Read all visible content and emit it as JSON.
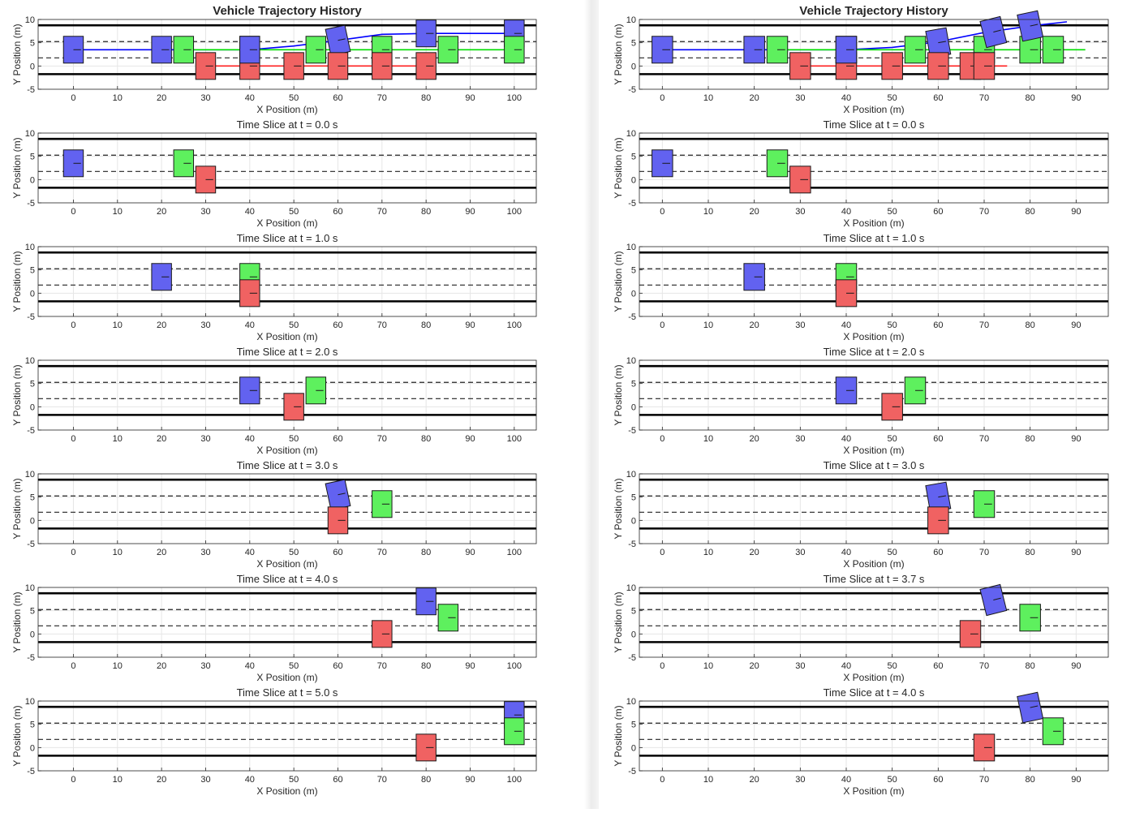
{
  "figures": [
    {
      "name": "left-figure",
      "panels": [
        {
          "title": "Vehicle Trajectory History",
          "main": true,
          "xlabel": "X Position (m)",
          "ylabel": "Y Position (m)"
        },
        {
          "title": "Time Slice at t = 0.0 s",
          "xlabel": "X Position (m)",
          "ylabel": "Y Position (m)"
        },
        {
          "title": "Time Slice at t = 1.0 s",
          "xlabel": "X Position (m)",
          "ylabel": "Y Position (m)"
        },
        {
          "title": "Time Slice at t = 2.0 s",
          "xlabel": "X Position (m)",
          "ylabel": "Y Position (m)"
        },
        {
          "title": "Time Slice at t = 3.0 s",
          "xlabel": "X Position (m)",
          "ylabel": "Y Position (m)"
        },
        {
          "title": "Time Slice at t = 4.0 s",
          "xlabel": "X Position (m)",
          "ylabel": "Y Position (m)"
        },
        {
          "title": "Time Slice at t = 5.0 s",
          "xlabel": "X Position (m)",
          "ylabel": "Y Position (m)"
        }
      ]
    },
    {
      "name": "right-figure",
      "panels": [
        {
          "title": "Vehicle Trajectory History",
          "main": true,
          "xlabel": "X Position (m)",
          "ylabel": "Y Position (m)"
        },
        {
          "title": "Time Slice at t = 0.0 s",
          "xlabel": "X Position (m)",
          "ylabel": "Y Position (m)"
        },
        {
          "title": "Time Slice at t = 1.0 s",
          "xlabel": "X Position (m)",
          "ylabel": "Y Position (m)"
        },
        {
          "title": "Time Slice at t = 2.0 s",
          "xlabel": "X Position (m)",
          "ylabel": "Y Position (m)"
        },
        {
          "title": "Time Slice at t = 3.0 s",
          "xlabel": "X Position (m)",
          "ylabel": "Y Position (m)"
        },
        {
          "title": "Time Slice at t = 3.7 s",
          "xlabel": "X Position (m)",
          "ylabel": "Y Position (m)"
        },
        {
          "title": "Time Slice at t = 4.0 s",
          "xlabel": "X Position (m)",
          "ylabel": "Y Position (m)"
        }
      ]
    }
  ],
  "chart_data": [
    {
      "figure": "left",
      "type": "scatter",
      "xlim": [
        -8,
        105
      ],
      "ylim": [
        -5,
        10
      ],
      "xticks": [
        0,
        10,
        20,
        30,
        40,
        50,
        60,
        70,
        80,
        90,
        100
      ],
      "yticks": [
        -5,
        0,
        5,
        10
      ],
      "grid": true,
      "lane_boundaries_solid": [
        -1.75,
        8.75
      ],
      "lane_markings_dashed": [
        1.75,
        5.25
      ],
      "colors": {
        "blue": "#6262f0",
        "green": "#5ef05e",
        "red": "#f06262",
        "blue_line": "#0000ff",
        "green_line": "#00dd00",
        "red_line": "#ff2020",
        "overlap": "#3b70c0"
      },
      "trajectories": [
        {
          "vehicle": "blue",
          "points": [
            [
              0,
              3.5
            ],
            [
              30,
              3.5
            ],
            [
              40,
              3.5
            ],
            [
              50,
              4.3
            ],
            [
              60,
              5.5
            ],
            [
              70,
              6.8
            ],
            [
              80,
              7.0
            ],
            [
              100,
              7.0
            ]
          ]
        },
        {
          "vehicle": "green",
          "points": [
            [
              25,
              3.5
            ],
            [
              100,
              3.5
            ]
          ]
        },
        {
          "vehicle": "red",
          "points": [
            [
              30,
              0
            ],
            [
              80,
              0
            ]
          ]
        }
      ],
      "time_slices": [
        {
          "t": "0.0 s",
          "vehicles": [
            {
              "vehicle": "blue",
              "x": 0,
              "y": 3.5,
              "heading": 0
            },
            {
              "vehicle": "green",
              "x": 25,
              "y": 3.5,
              "heading": 0
            },
            {
              "vehicle": "red",
              "x": 30,
              "y": 0,
              "heading": 0
            }
          ]
        },
        {
          "t": "1.0 s",
          "vehicles": [
            {
              "vehicle": "blue",
              "x": 20,
              "y": 3.5,
              "heading": 0
            },
            {
              "vehicle": "green",
              "x": 40,
              "y": 3.5,
              "heading": 0
            },
            {
              "vehicle": "red",
              "x": 40,
              "y": 0,
              "heading": 0
            }
          ]
        },
        {
          "t": "2.0 s",
          "vehicles": [
            {
              "vehicle": "blue",
              "x": 40,
              "y": 3.5,
              "heading": 0
            },
            {
              "vehicle": "green",
              "x": 55,
              "y": 3.5,
              "heading": 0
            },
            {
              "vehicle": "red",
              "x": 50,
              "y": 0,
              "heading": 0
            }
          ]
        },
        {
          "t": "3.0 s",
          "vehicles": [
            {
              "vehicle": "blue",
              "x": 60,
              "y": 5.5,
              "heading": 12
            },
            {
              "vehicle": "green",
              "x": 70,
              "y": 3.5,
              "heading": 0
            },
            {
              "vehicle": "red",
              "x": 60,
              "y": 0,
              "heading": 0
            }
          ]
        },
        {
          "t": "4.0 s",
          "vehicles": [
            {
              "vehicle": "blue",
              "x": 80,
              "y": 7.0,
              "heading": 0
            },
            {
              "vehicle": "green",
              "x": 85,
              "y": 3.5,
              "heading": 0
            },
            {
              "vehicle": "red",
              "x": 70,
              "y": 0,
              "heading": 0
            }
          ]
        },
        {
          "t": "5.0 s",
          "vehicles": [
            {
              "vehicle": "blue",
              "x": 100,
              "y": 7.0,
              "heading": 0
            },
            {
              "vehicle": "green",
              "x": 100,
              "y": 3.5,
              "heading": 0
            },
            {
              "vehicle": "red",
              "x": 80,
              "y": 0,
              "heading": 0
            }
          ]
        }
      ]
    },
    {
      "figure": "right",
      "type": "scatter",
      "xlim": [
        -5,
        97
      ],
      "ylim": [
        -5,
        10
      ],
      "xticks": [
        0,
        10,
        20,
        30,
        40,
        50,
        60,
        70,
        80,
        90
      ],
      "yticks": [
        -5,
        0,
        5,
        10
      ],
      "grid": true,
      "lane_boundaries_solid": [
        -1.75,
        8.75
      ],
      "lane_markings_dashed": [
        1.75,
        5.25
      ],
      "colors": {
        "blue": "#6262f0",
        "green": "#5ef05e",
        "red": "#f06262",
        "blue_line": "#0000ff",
        "green_line": "#00dd00",
        "red_line": "#ff2020",
        "overlap": "#3b70c0"
      },
      "trajectories": [
        {
          "vehicle": "blue",
          "points": [
            [
              0,
              3.5
            ],
            [
              30,
              3.5
            ],
            [
              40,
              3.5
            ],
            [
              50,
              4.0
            ],
            [
              60,
              5.2
            ],
            [
              70,
              7.2
            ],
            [
              80,
              8.6
            ],
            [
              88,
              9.5
            ]
          ]
        },
        {
          "vehicle": "green",
          "points": [
            [
              25,
              3.5
            ],
            [
              92,
              3.5
            ]
          ]
        },
        {
          "vehicle": "red",
          "points": [
            [
              30,
              0
            ],
            [
              75,
              0
            ]
          ]
        }
      ],
      "time_slices": [
        {
          "t": "0.0 s",
          "vehicles": [
            {
              "vehicle": "blue",
              "x": 0,
              "y": 3.5,
              "heading": 0
            },
            {
              "vehicle": "green",
              "x": 25,
              "y": 3.5,
              "heading": 0
            },
            {
              "vehicle": "red",
              "x": 30,
              "y": 0,
              "heading": 0
            }
          ]
        },
        {
          "t": "1.0 s",
          "vehicles": [
            {
              "vehicle": "blue",
              "x": 20,
              "y": 3.5,
              "heading": 0
            },
            {
              "vehicle": "green",
              "x": 40,
              "y": 3.5,
              "heading": 0
            },
            {
              "vehicle": "red",
              "x": 40,
              "y": 0,
              "heading": 0
            }
          ]
        },
        {
          "t": "2.0 s",
          "vehicles": [
            {
              "vehicle": "blue",
              "x": 40,
              "y": 3.5,
              "heading": 0
            },
            {
              "vehicle": "green",
              "x": 55,
              "y": 3.5,
              "heading": 0
            },
            {
              "vehicle": "red",
              "x": 50,
              "y": 0,
              "heading": 0
            }
          ]
        },
        {
          "t": "3.0 s",
          "vehicles": [
            {
              "vehicle": "blue",
              "x": 60,
              "y": 5.0,
              "heading": 10
            },
            {
              "vehicle": "green",
              "x": 70,
              "y": 3.5,
              "heading": 0
            },
            {
              "vehicle": "red",
              "x": 60,
              "y": 0,
              "heading": 0
            }
          ]
        },
        {
          "t": "3.7 s",
          "vehicles": [
            {
              "vehicle": "blue",
              "x": 72,
              "y": 7.3,
              "heading": 14
            },
            {
              "vehicle": "green",
              "x": 80,
              "y": 3.5,
              "heading": 0
            },
            {
              "vehicle": "red",
              "x": 67,
              "y": 0,
              "heading": 0
            }
          ]
        },
        {
          "t": "4.0 s",
          "vehicles": [
            {
              "vehicle": "blue",
              "x": 80,
              "y": 8.6,
              "heading": 12
            },
            {
              "vehicle": "green",
              "x": 85,
              "y": 3.5,
              "heading": 0
            },
            {
              "vehicle": "red",
              "x": 70,
              "y": 0,
              "heading": 0
            }
          ]
        }
      ]
    }
  ]
}
